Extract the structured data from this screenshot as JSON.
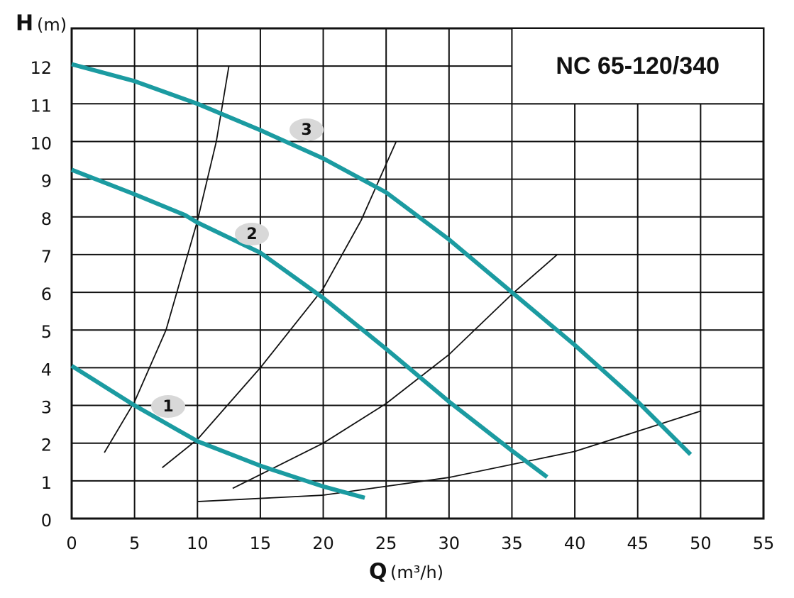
{
  "chart_data": {
    "type": "line",
    "title": "NC 65-120/340",
    "y_label": "H",
    "y_unit": "(m)",
    "x_label": "Q",
    "x_unit": "(m³/h)",
    "xlim": [
      0,
      55
    ],
    "ylim": [
      0,
      13
    ],
    "xticks": [
      0,
      5,
      10,
      15,
      20,
      25,
      30,
      35,
      40,
      45,
      50,
      55
    ],
    "yticks": [
      0,
      1,
      2,
      3,
      4,
      5,
      6,
      7,
      8,
      9,
      10,
      11,
      12
    ],
    "grid": true,
    "series": [
      {
        "name": "1",
        "color": "#1b9ba1",
        "x": [
          0,
          5,
          10,
          15,
          20,
          23.3
        ],
        "values": [
          4.05,
          3.0,
          2.05,
          1.4,
          0.85,
          0.55
        ]
      },
      {
        "name": "2",
        "color": "#1b9ba1",
        "x": [
          0,
          5,
          9,
          10,
          15,
          20,
          25,
          30,
          35,
          37.8
        ],
        "values": [
          9.25,
          8.6,
          8.05,
          7.85,
          7.05,
          5.85,
          4.5,
          3.1,
          1.8,
          1.1
        ]
      },
      {
        "name": "3",
        "color": "#1b9ba1",
        "x": [
          0,
          5,
          10,
          15,
          20,
          25,
          30,
          35,
          40,
          45,
          49.2
        ],
        "values": [
          12.05,
          11.6,
          11.0,
          10.3,
          9.55,
          8.65,
          7.4,
          6.0,
          4.6,
          3.1,
          1.7
        ]
      }
    ],
    "system_curves": [
      {
        "color": "#111111",
        "x": [
          2.6,
          5,
          7.5,
          10,
          11.5,
          12.5
        ],
        "values": [
          1.75,
          3.1,
          5.0,
          7.9,
          10.0,
          12.0
        ]
      },
      {
        "color": "#111111",
        "x": [
          7.2,
          10,
          15,
          20,
          23,
          25.8
        ],
        "values": [
          1.35,
          2.1,
          4.0,
          6.1,
          7.9,
          10.0
        ]
      },
      {
        "color": "#111111",
        "x": [
          12.8,
          20,
          25,
          30,
          35,
          38.6
        ],
        "values": [
          0.8,
          2.0,
          3.05,
          4.35,
          5.95,
          7.0
        ]
      },
      {
        "color": "#111111",
        "x": [
          10,
          20,
          30,
          40,
          50
        ],
        "values": [
          0.45,
          0.62,
          1.09,
          1.78,
          2.85
        ]
      }
    ]
  }
}
